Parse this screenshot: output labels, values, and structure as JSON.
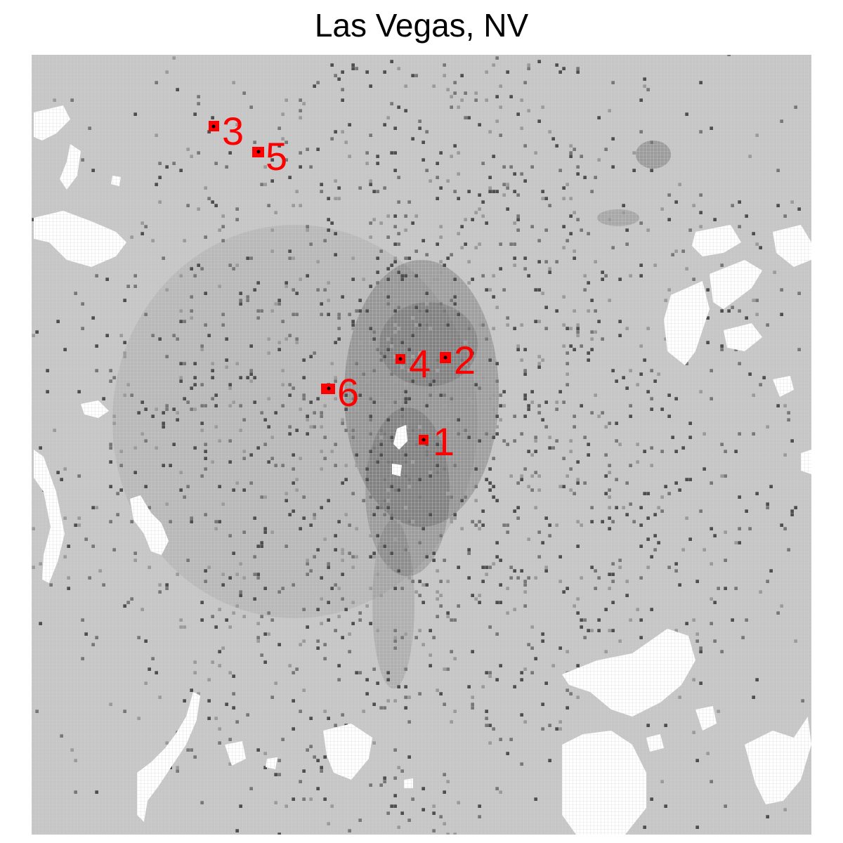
{
  "title": "Las Vegas, NV",
  "colors": {
    "background": "#c6c6c6",
    "grid_line": "#d6d6d6",
    "void": "#ffffff",
    "density_low": "#9a9a9a",
    "density_mid": "#777777",
    "density_high": "#4e4e4e",
    "marker": "#ff0000",
    "marker_center": "#000000"
  },
  "markers": [
    {
      "label": "1"
    },
    {
      "label": "2"
    },
    {
      "label": "3"
    },
    {
      "label": "4"
    },
    {
      "label": "5"
    },
    {
      "label": "6"
    }
  ]
}
